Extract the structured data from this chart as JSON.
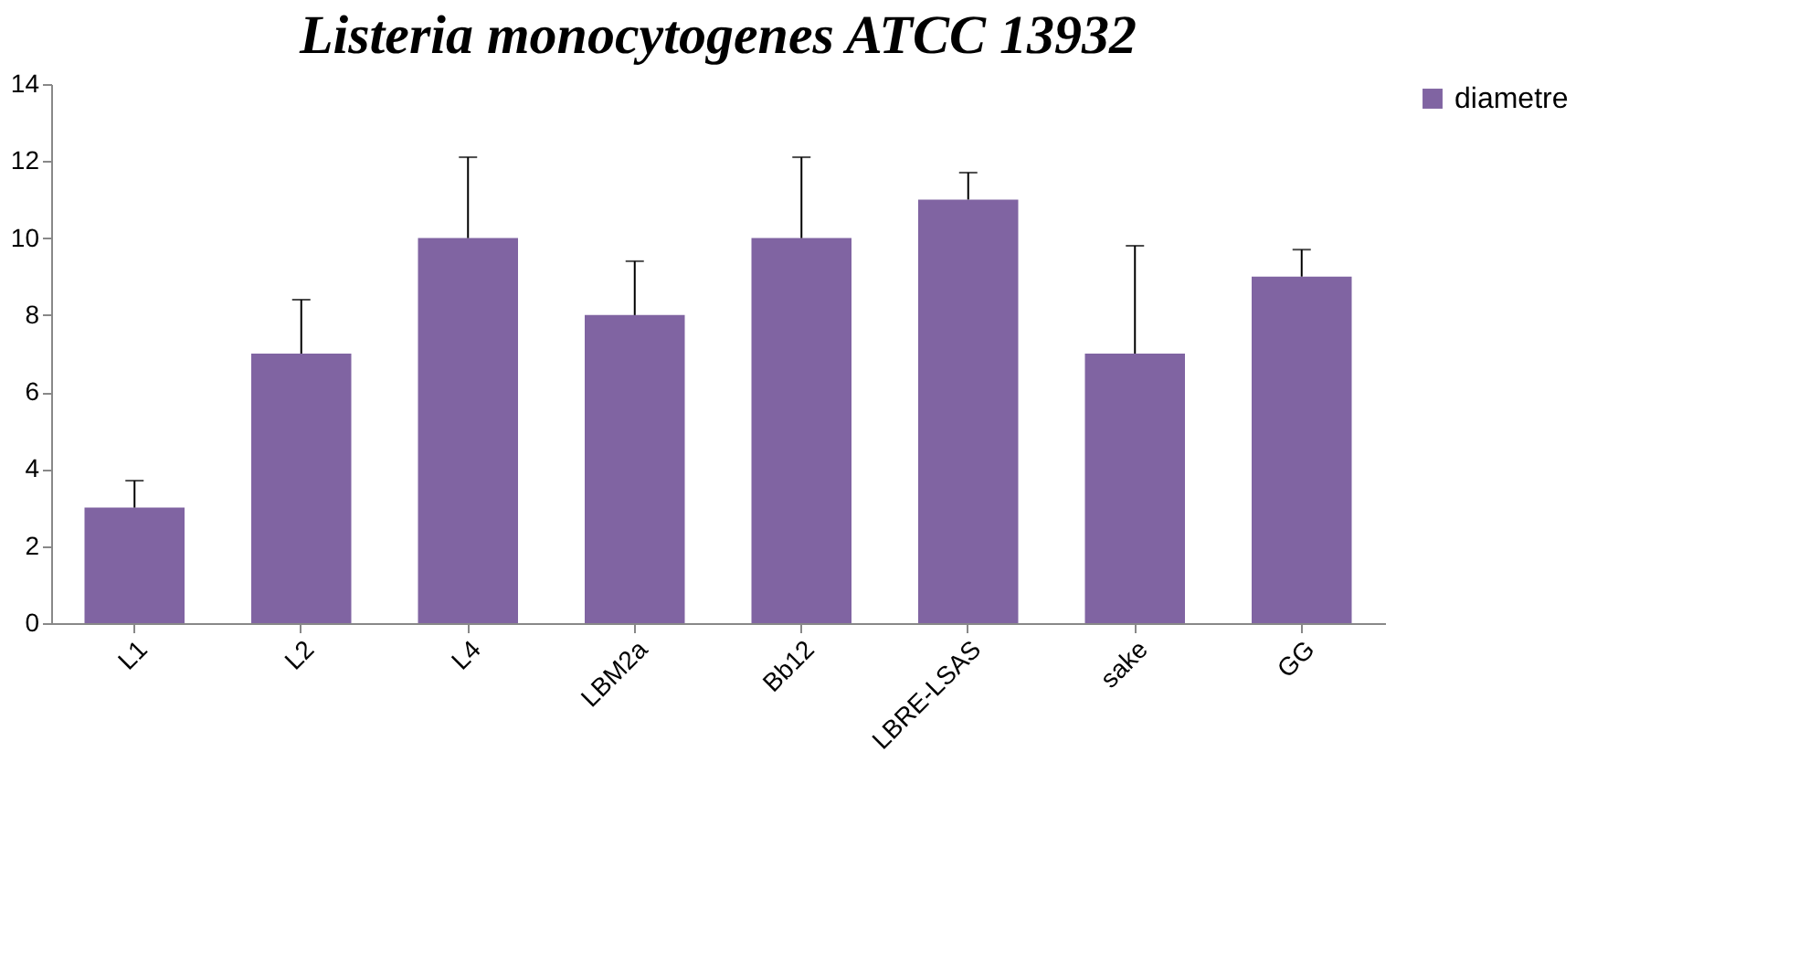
{
  "chart_data": {
    "type": "bar",
    "title": "Listeria monocytogenes ATCC 13932",
    "categories": [
      "L1",
      "L2",
      "L4",
      "LBM2a",
      "Bb12",
      "LBRE-LSAS",
      "sake",
      "GG"
    ],
    "series": [
      {
        "name": "diametre",
        "color": "#8064a2",
        "values": [
          3,
          7,
          10,
          8,
          10,
          11,
          7,
          9
        ],
        "errors": [
          [
            3,
            3.7
          ],
          [
            7,
            8.4
          ],
          [
            10,
            12.1
          ],
          [
            8,
            9.4
          ],
          [
            10,
            12.1
          ],
          [
            11,
            11.7
          ],
          [
            7,
            9.8
          ],
          [
            9,
            9.7
          ]
        ]
      }
    ],
    "ylim": [
      0,
      14
    ],
    "yticks": [
      0,
      2,
      4,
      6,
      8,
      10,
      12,
      14
    ],
    "grid": false,
    "legend": "right"
  }
}
